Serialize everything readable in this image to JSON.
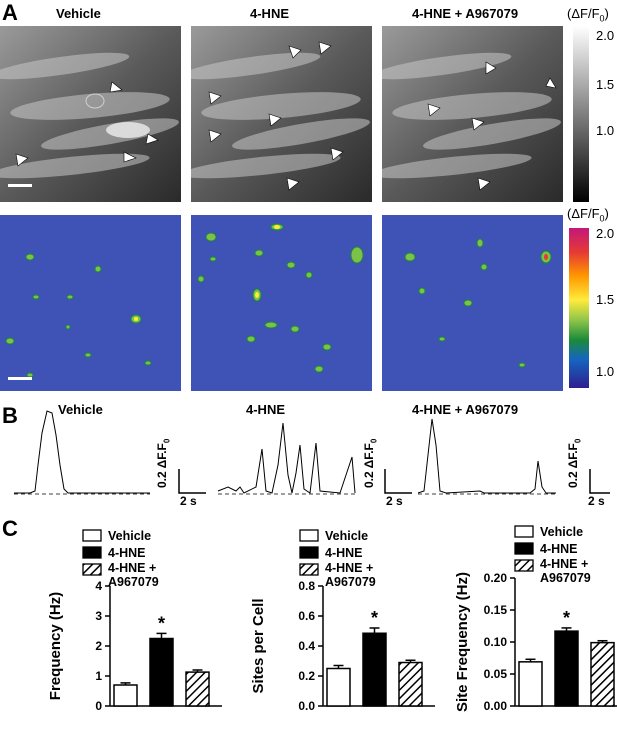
{
  "panels": {
    "a": "A",
    "b": "B",
    "c": "C"
  },
  "conditions": [
    "Vehicle",
    "4-HNE",
    "4-HNE + A967079"
  ],
  "colorbars": {
    "unit_prefix": "(ΔF/F",
    "unit_sub": "0",
    "unit_suffix": ")",
    "gray_ticks": [
      "2.0",
      "1.5",
      "1.0"
    ],
    "heat_ticks": [
      "2.0",
      "1.5",
      "1.0"
    ],
    "gray_colors": [
      "#ffffff",
      "#000000"
    ],
    "heat_colors": [
      "#c2187a",
      "#e53935",
      "#ff9800",
      "#ffeb3b",
      "#8bc34a",
      "#1b8a3a",
      "#1565c0",
      "#2e1f8f"
    ]
  },
  "traces": {
    "scale_y_prefix": "0.2 ΔF.F",
    "scale_y_sub": "0",
    "scale_x": "2 s"
  },
  "charts_legend": {
    "vehicle": "Vehicle",
    "hne": "4-HNE",
    "combo_line1": "4-HNE +",
    "combo_line2": "A967079"
  },
  "significance": "*",
  "chart_data": [
    {
      "type": "bar",
      "categories": [
        "Vehicle",
        "4-HNE",
        "4-HNE + A967079"
      ],
      "values": [
        0.7,
        2.25,
        1.13
      ],
      "errors": [
        0.07,
        0.17,
        0.07
      ],
      "ylabel": "Frequency (Hz)",
      "ylim": [
        0,
        4
      ],
      "yticks": [
        "0",
        "1",
        "2",
        "3",
        "4"
      ],
      "significant": [
        false,
        true,
        false
      ]
    },
    {
      "type": "bar",
      "categories": [
        "Vehicle",
        "4-HNE",
        "4-HNE + A967079"
      ],
      "values": [
        0.25,
        0.485,
        0.29
      ],
      "errors": [
        0.02,
        0.035,
        0.015
      ],
      "ylabel": "Sites per Cell",
      "ylim": [
        0,
        0.8
      ],
      "yticks": [
        "0.0",
        "0.2",
        "0.4",
        "0.6",
        "0.8"
      ],
      "significant": [
        false,
        true,
        false
      ]
    },
    {
      "type": "bar",
      "categories": [
        "Vehicle",
        "4-HNE",
        "4-HNE + A967079"
      ],
      "values": [
        0.069,
        0.117,
        0.099
      ],
      "errors": [
        0.004,
        0.005,
        0.003
      ],
      "ylabel": "Site Frequency (Hz)",
      "ylim": [
        0,
        0.2
      ],
      "yticks": [
        "0.00",
        "0.05",
        "0.10",
        "0.15",
        "0.20"
      ],
      "significant": [
        false,
        true,
        false
      ]
    }
  ]
}
